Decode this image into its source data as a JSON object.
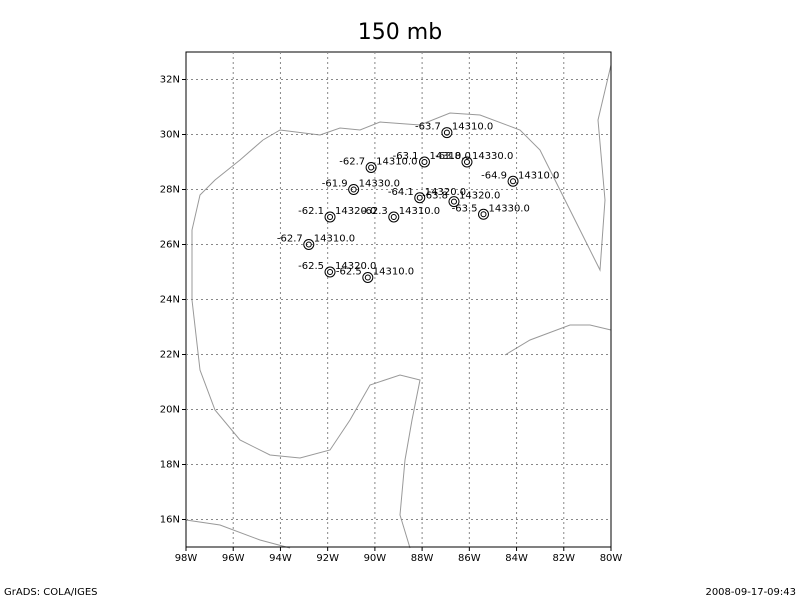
{
  "chart_data": {
    "type": "station_map",
    "title": "150 mb",
    "xlim": [
      -98,
      -80
    ],
    "ylim": [
      15,
      33
    ],
    "xticks": [
      {
        "value": -98,
        "label": "98W"
      },
      {
        "value": -96,
        "label": "96W"
      },
      {
        "value": -94,
        "label": "94W"
      },
      {
        "value": -92,
        "label": "92W"
      },
      {
        "value": -90,
        "label": "90W"
      },
      {
        "value": -88,
        "label": "88W"
      },
      {
        "value": -86,
        "label": "86W"
      },
      {
        "value": -84,
        "label": "84W"
      },
      {
        "value": -82,
        "label": "82W"
      },
      {
        "value": -80,
        "label": "80W"
      }
    ],
    "yticks": [
      {
        "value": 16,
        "label": "16N"
      },
      {
        "value": 18,
        "label": "18N"
      },
      {
        "value": 20,
        "label": "20N"
      },
      {
        "value": 22,
        "label": "22N"
      },
      {
        "value": 24,
        "label": "24N"
      },
      {
        "value": 26,
        "label": "26N"
      },
      {
        "value": 28,
        "label": "28N"
      },
      {
        "value": 30,
        "label": "30N"
      },
      {
        "value": 32,
        "label": "32N"
      }
    ],
    "grid": true,
    "stations": {
      "lon": [
        -86.95,
        -90.16,
        -87.9,
        -86.1,
        -84.15,
        -90.9,
        -88.1,
        -86.65,
        -85.4,
        -91.9,
        -89.2,
        -92.8,
        -91.9,
        -90.3
      ],
      "lat": [
        30.07,
        28.8,
        29.0,
        29.0,
        28.3,
        28.0,
        27.7,
        27.56,
        27.1,
        27.0,
        27.0,
        26.0,
        25.0,
        24.8
      ],
      "temperature": [
        -63.7,
        -62.7,
        -63.1,
        -63.8,
        -64.9,
        -61.9,
        -64.1,
        -63.8,
        -63.5,
        -62.1,
        -62.3,
        -62.7,
        -62.5,
        -62.5
      ],
      "temperature_labels": [
        "-63.7",
        "-62.7",
        "-63.1",
        "-63.8",
        "-64.9",
        "-61.9",
        "-64.1",
        "-63.8",
        "-63.5",
        "-62.1",
        "-62.3",
        "-62.7",
        "-62.5",
        "-62.5"
      ],
      "height": [
        14310,
        14310,
        14310,
        14330,
        14310,
        14330,
        14320,
        14320,
        14330,
        14320,
        14310,
        14310,
        14320,
        14310
      ],
      "height_labels": [
        "14310.0",
        "14310.0",
        "14310.0",
        "14330.0",
        "14310.0",
        "14330.0",
        "14320.0",
        "14320.0",
        "14330.0",
        "14320.0",
        "14310.0",
        "14310.0",
        "14320.0",
        "14310.0"
      ]
    },
    "footer_left": "GrADS: COLA/IGES",
    "footer_right": "2008-09-17-09:43"
  }
}
